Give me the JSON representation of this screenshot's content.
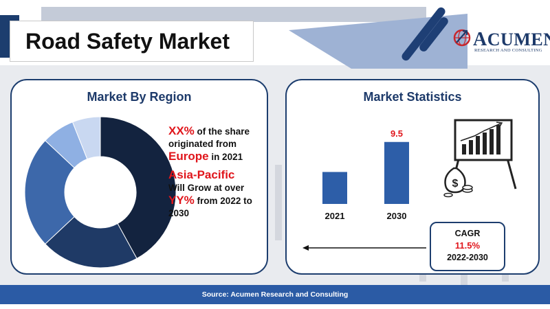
{
  "header": {
    "title": "Road Safety Market"
  },
  "logo": {
    "name_initial": "A",
    "name_rest": "CUMEN",
    "tagline": "RESEARCH AND CONSULTING",
    "icon": "globe-arrow-icon"
  },
  "left_panel": {
    "title": "Market By Region",
    "statement_1": {
      "highlight": "XX%",
      "text_a": " of the share originated from ",
      "region": "Europe",
      "text_b": " in 2021"
    },
    "statement_2": {
      "region": "Asia-Pacific",
      "text_a": "Will Grow at over ",
      "highlight": "YY%",
      "text_b": " from 2022 to 2030"
    }
  },
  "right_panel": {
    "title": "Market Statistics"
  },
  "cagr": {
    "label": "CAGR",
    "value": "11.5%",
    "period": "2022-2030"
  },
  "footer": {
    "source": "Source: Acumen Research and Consulting"
  },
  "colors": {
    "navy": "#1c3d6e",
    "accent_red": "#e0151b",
    "footer_blue": "#2b5ba5"
  },
  "chart_data": [
    {
      "type": "pie",
      "variant": "donut",
      "title": "Market By Region",
      "slices": [
        {
          "value": 42,
          "color": "#13233f"
        },
        {
          "value": 21,
          "color": "#1f3a66"
        },
        {
          "value": 24,
          "color": "#3d68aa"
        },
        {
          "value": 7,
          "color": "#8fb0e3"
        },
        {
          "value": 6,
          "color": "#c9d8f1"
        }
      ]
    },
    {
      "type": "bar",
      "title": "Market Statistics",
      "categories": [
        "2021",
        "2030"
      ],
      "values": [
        4.9,
        9.5
      ],
      "data_labels": [
        "",
        "9.5"
      ],
      "ylim": [
        0,
        10
      ]
    }
  ]
}
